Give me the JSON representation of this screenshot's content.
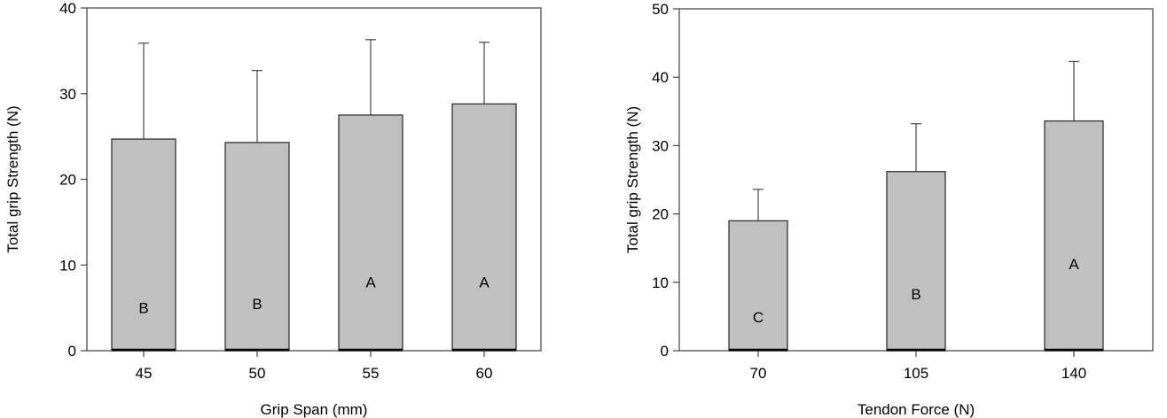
{
  "chart_data": [
    {
      "type": "bar",
      "xlabel": "Grip Span (mm)",
      "ylabel": "Total grip Strength (N)",
      "ylim": [
        0,
        40
      ],
      "yticks": [
        "0",
        "10",
        "20",
        "30",
        "40"
      ],
      "categories": [
        "45",
        "50",
        "55",
        "60"
      ],
      "values": [
        24.7,
        24.3,
        27.5,
        28.8
      ],
      "error_upper": [
        35.9,
        32.7,
        36.3,
        36.0
      ],
      "group_labels": [
        "B",
        "B",
        "A",
        "A"
      ],
      "group_label_values": [
        5.0,
        5.5,
        8.0,
        8.0
      ],
      "bar_color": "#c0c0c0",
      "grid": false
    },
    {
      "type": "bar",
      "xlabel": "Tendon Force (N)",
      "ylabel": "Total grip Strength (N)",
      "ylim": [
        0,
        50
      ],
      "yticks": [
        "0",
        "10",
        "20",
        "30",
        "40",
        "50"
      ],
      "categories": [
        "70",
        "105",
        "140"
      ],
      "values": [
        19.0,
        26.2,
        33.6
      ],
      "error_upper": [
        23.6,
        33.2,
        42.3
      ],
      "group_labels": [
        "C",
        "B",
        "A"
      ],
      "group_label_values": [
        4.9,
        8.3,
        12.7
      ],
      "bar_color": "#c0c0c0",
      "grid": false
    }
  ]
}
